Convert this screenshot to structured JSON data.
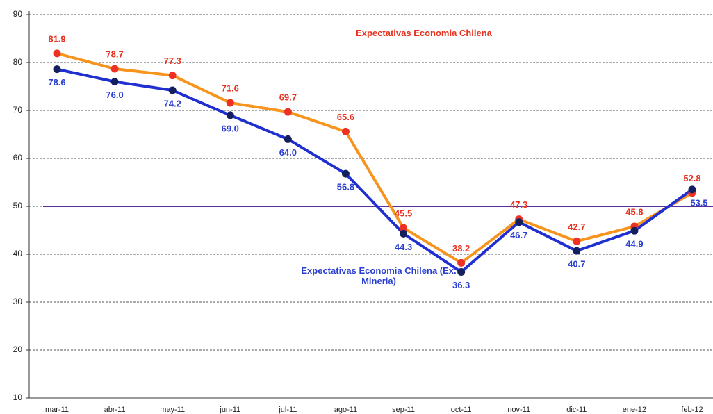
{
  "chart_data": {
    "type": "line",
    "categories": [
      "mar-11",
      "abr-11",
      "may-11",
      "jun-11",
      "jul-11",
      "ago-11",
      "sep-11",
      "oct-11",
      "nov-11",
      "dic-11",
      "ene-12",
      "feb-12"
    ],
    "series": [
      {
        "name": "Expectativas Economia Chilena",
        "color": "#f7941d",
        "marker_color": "#ee3124",
        "label_color": "#e8301e",
        "values": [
          81.9,
          78.7,
          77.3,
          71.6,
          69.7,
          65.6,
          45.5,
          38.2,
          47.3,
          42.7,
          45.8,
          52.8
        ],
        "value_labels": [
          "81.9",
          "78.7",
          "77.3",
          "71.6",
          "69.7",
          "65.6",
          "45.5",
          "38.2",
          "47.3",
          "42.7",
          "45.8",
          "52.8"
        ]
      },
      {
        "name": "Expectativas Economia Chilena (Ex. Mineria)",
        "color": "#1f2fd0",
        "marker_color": "#14205e",
        "label_color": "#2a3fd0",
        "values": [
          78.6,
          76.0,
          74.2,
          69.0,
          64.0,
          56.8,
          44.3,
          36.3,
          46.7,
          40.7,
          44.9,
          53.5
        ],
        "value_labels": [
          "78.6",
          "76.0",
          "74.2",
          "69.0",
          "64.0",
          "56.8",
          "44.3",
          "36.3",
          "46.7",
          "40.7",
          "44.9",
          "53.5"
        ]
      }
    ],
    "ylim": [
      10,
      90
    ],
    "yticks": [
      10,
      20,
      30,
      40,
      50,
      60,
      70,
      80,
      90
    ],
    "grid": true,
    "reference_line": {
      "value": 50,
      "color": "#5b2d9e"
    }
  }
}
